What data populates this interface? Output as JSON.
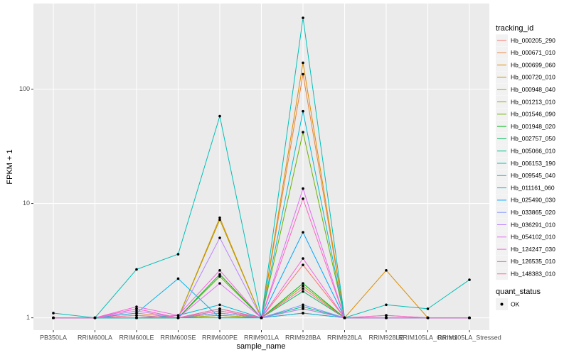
{
  "chart_data": {
    "type": "line",
    "log_y": true,
    "grid": true,
    "x_label": "sample_name",
    "y_label": "FPKM + 1",
    "legend_title": "tracking_id",
    "point_legend_title": "quant_status",
    "point_legend_label": "OK",
    "point_color": "#000000",
    "categories": [
      "PB350LA",
      "RRIM600LA",
      "RRIM600LE",
      "RRIM600SE",
      "RRIM600PE",
      "RRIM901LA",
      "RRIM928BA",
      "RRIM928LA",
      "RRIM928LE",
      "RRIM105LA_Control",
      "RRIM105LA_Stressed"
    ],
    "ylim": [
      0.78,
      560
    ],
    "yticks": [
      1,
      10,
      100
    ],
    "series": [
      {
        "name": "Hb_000205_290",
        "color": "#F8766D",
        "values": [
          1,
          1,
          1.05,
          1,
          1.15,
          1,
          2.9,
          1,
          1,
          1,
          1
        ]
      },
      {
        "name": "Hb_000671_010",
        "color": "#EC823C",
        "values": [
          1,
          1,
          1.1,
          1,
          1.1,
          1,
          135,
          1,
          1,
          1,
          1
        ]
      },
      {
        "name": "Hb_000699_060",
        "color": "#DC8D00",
        "values": [
          1,
          1,
          1,
          1,
          7.5,
          1,
          170,
          1,
          2.6,
          1,
          1
        ]
      },
      {
        "name": "Hb_000720_010",
        "color": "#C99800",
        "values": [
          1,
          1,
          1,
          1,
          1.05,
          1,
          1.1,
          1,
          1,
          1,
          1
        ]
      },
      {
        "name": "Hb_000948_040",
        "color": "#B3A000",
        "values": [
          1,
          1,
          1,
          1,
          7.2,
          1,
          1.2,
          1,
          1,
          1,
          1
        ]
      },
      {
        "name": "Hb_001213_010",
        "color": "#95A900",
        "values": [
          1,
          1,
          1,
          1,
          1.05,
          1,
          1.9,
          1,
          1,
          1,
          1
        ]
      },
      {
        "name": "Hb_001546_090",
        "color": "#6BB100",
        "values": [
          1,
          1,
          1,
          1,
          2.3,
          1,
          42,
          1,
          1,
          1,
          1
        ]
      },
      {
        "name": "Hb_001948_020",
        "color": "#00B813",
        "values": [
          1,
          1,
          1,
          1,
          2.4,
          1,
          2,
          1,
          1,
          1,
          1
        ]
      },
      {
        "name": "Hb_002757_050",
        "color": "#00BD5C",
        "values": [
          1,
          1,
          1,
          1,
          1.1,
          1,
          1.7,
          1,
          1,
          1,
          1
        ]
      },
      {
        "name": "Hb_005066_010",
        "color": "#00C08E",
        "values": [
          1,
          1,
          1,
          1,
          1,
          1,
          1.25,
          1,
          1,
          1,
          1
        ]
      },
      {
        "name": "Hb_006153_190",
        "color": "#00C0B8",
        "values": [
          1.1,
          1,
          2.65,
          3.6,
          58,
          1,
          420,
          1,
          1.3,
          1.2,
          2.15
        ]
      },
      {
        "name": "Hb_009545_040",
        "color": "#00BCD8",
        "values": [
          1,
          1,
          1,
          1.05,
          1.3,
          1,
          64,
          1,
          1,
          1,
          1
        ]
      },
      {
        "name": "Hb_011161_060",
        "color": "#00B4EF",
        "values": [
          1,
          1,
          1.1,
          2.2,
          1,
          1,
          1.1,
          1,
          1,
          1,
          1
        ]
      },
      {
        "name": "Hb_025490_030",
        "color": "#00A5FF",
        "values": [
          1,
          1,
          1,
          1,
          1.2,
          1,
          5.6,
          1,
          1,
          1,
          1
        ]
      },
      {
        "name": "Hb_033865_020",
        "color": "#7F96FF",
        "values": [
          1,
          1,
          1,
          1,
          1.1,
          1,
          1.3,
          1,
          1,
          1,
          1
        ]
      },
      {
        "name": "Hb_036291_010",
        "color": "#BC81FF",
        "values": [
          1,
          1,
          1.15,
          1,
          5,
          1,
          1.2,
          1,
          1.05,
          1,
          1
        ]
      },
      {
        "name": "Hb_054102_010",
        "color": "#E26EF7",
        "values": [
          1,
          1,
          1.2,
          1,
          2,
          1,
          13.5,
          1,
          1,
          1,
          1
        ]
      },
      {
        "name": "Hb_124247_030",
        "color": "#F863DF",
        "values": [
          1,
          1,
          1.25,
          1.05,
          2.6,
          1,
          3.3,
          1,
          1,
          1,
          1
        ]
      },
      {
        "name": "Hb_126535_010",
        "color": "#FF62BF",
        "values": [
          1,
          1,
          1.2,
          1,
          1.15,
          1,
          11,
          1,
          1.05,
          1,
          1
        ]
      },
      {
        "name": "Hb_148383_010",
        "color": "#FF6A9A",
        "values": [
          1,
          1,
          1.05,
          1,
          1.2,
          1,
          1.8,
          1,
          1,
          1,
          1
        ]
      }
    ]
  }
}
